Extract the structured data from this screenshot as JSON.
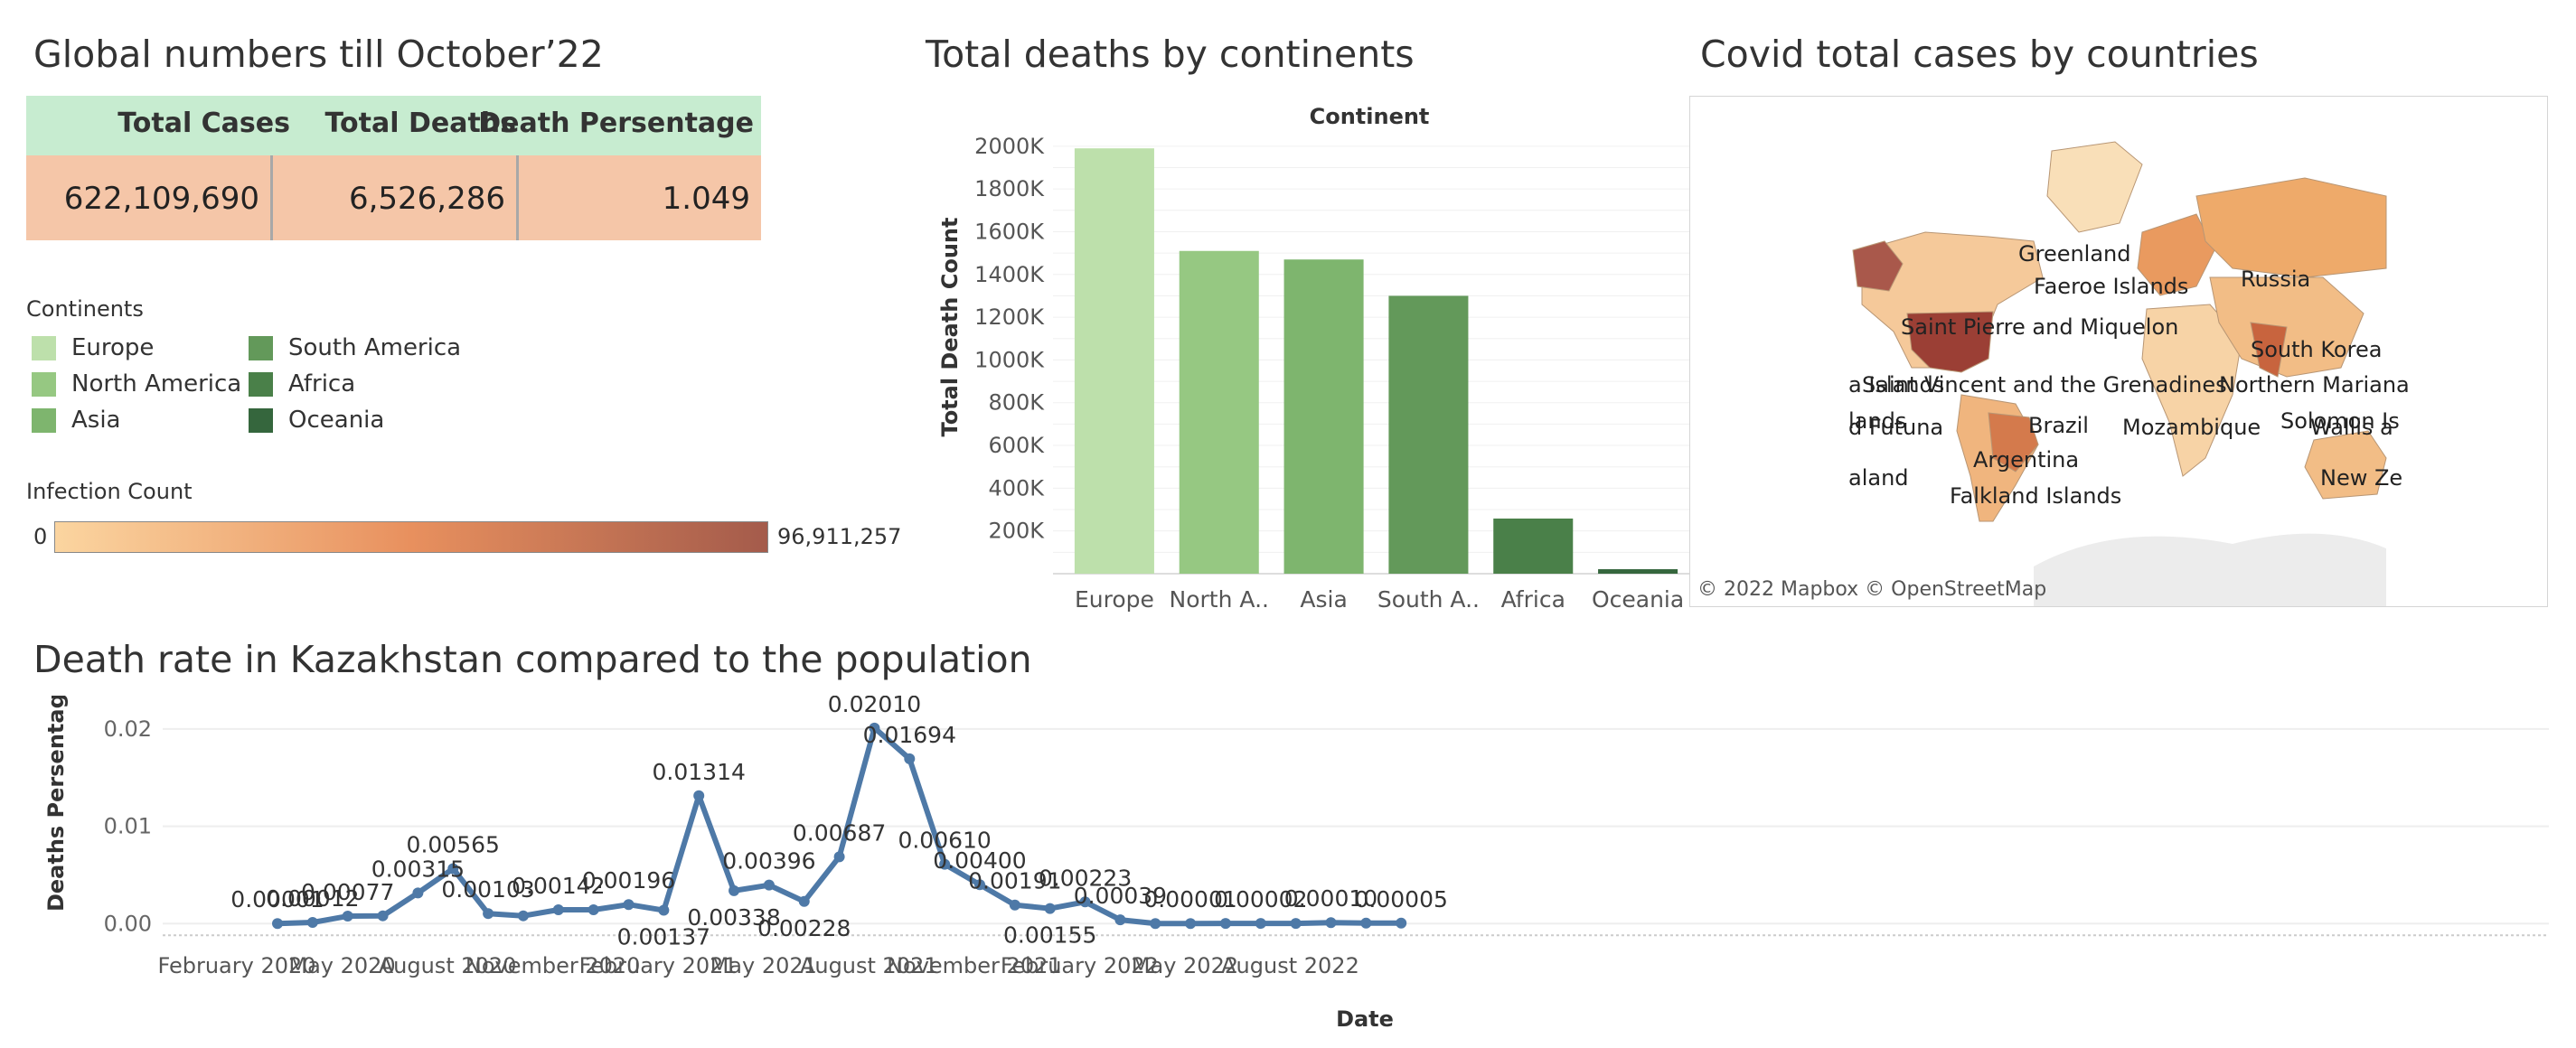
{
  "titles": {
    "global": "Global numbers till October’22",
    "deaths_continent": "Total deaths by continents",
    "cases_countries": "Covid total cases by countries",
    "kazakhstan": "Death rate in Kazakhstan compared to the population"
  },
  "kpi": {
    "headers": [
      "Total Cases",
      "Total Deaths",
      "Death Persentage"
    ],
    "values": [
      "622,109,690",
      "6,526,286",
      "1.049"
    ]
  },
  "legend": {
    "title": "Continents",
    "items": [
      {
        "label": "Europe",
        "color": "#bde0ab"
      },
      {
        "label": "North America",
        "color": "#96c882"
      },
      {
        "label": "Asia",
        "color": "#7eb56e"
      },
      {
        "label": "South America",
        "color": "#63995a"
      },
      {
        "label": "Africa",
        "color": "#4a8049"
      },
      {
        "label": "Oceania",
        "color": "#35663d"
      }
    ]
  },
  "infection": {
    "title": "Infection Count",
    "min": "0",
    "max": "96,911,257",
    "colors": [
      "#fbd5a0",
      "#e8905e",
      "#a45b4b"
    ]
  },
  "map": {
    "attribution": "© 2022 Mapbox  © OpenStreetMap",
    "labels": [
      "Greenland",
      "Faeroe Islands",
      "Russia",
      "Saint Pierre and Miquelon",
      "South Korea",
      "a Islands",
      "Saint Vincent and the Grenadines",
      "Northern Mariana",
      "lands",
      "d Futuna",
      "Brazil",
      "Mozambique",
      "Solomon Is",
      "Wallis a",
      "Argentina",
      "aland",
      "New Ze",
      "Falkland Islands"
    ]
  },
  "chart_data": [
    {
      "type": "bar",
      "header": "Continent",
      "ylabel": "Total Death Count",
      "categories": [
        "Europe",
        "North A..",
        "Asia",
        "South A..",
        "Africa",
        "Oceania"
      ],
      "values": [
        1990000,
        1510000,
        1470000,
        1300000,
        258000,
        21000
      ],
      "colors": [
        "#bde0ab",
        "#96c882",
        "#7eb56e",
        "#63995a",
        "#4a8049",
        "#35663d"
      ],
      "ylim": [
        0,
        2050000
      ],
      "yticks": [
        200000,
        400000,
        600000,
        800000,
        1000000,
        1200000,
        1400000,
        1600000,
        1800000,
        2000000
      ],
      "ytick_labels": [
        "200K",
        "400K",
        "600K",
        "800K",
        "1000K",
        "1200K",
        "1400K",
        "1600K",
        "1800K",
        "2000K"
      ],
      "grid": true
    },
    {
      "type": "line",
      "xlabel": "Date",
      "ylabel": "Deaths Persentage",
      "x": [
        "2020-02",
        "2020-03",
        "2020-04",
        "2020-05",
        "2020-06",
        "2020-07",
        "2020-08",
        "2020-09",
        "2020-10",
        "2020-11",
        "2020-12",
        "2021-01",
        "2021-02",
        "2021-03",
        "2021-04",
        "2021-05",
        "2021-06",
        "2021-07",
        "2021-08",
        "2021-09",
        "2021-10",
        "2021-11",
        "2021-12",
        "2022-01",
        "2022-02",
        "2022-03",
        "2022-04",
        "2022-05",
        "2022-06",
        "2022-07",
        "2022-08",
        "2022-09",
        "2022-10"
      ],
      "values": [
        1e-05,
        0.00012,
        0.00077,
        0.0008,
        0.00315,
        0.00565,
        0.00103,
        0.0008,
        0.00142,
        0.00142,
        0.00196,
        0.00137,
        0.01314,
        0.00338,
        0.00396,
        0.00228,
        0.00687,
        0.0201,
        0.01694,
        0.0061,
        0.004,
        0.00191,
        0.00155,
        0.00223,
        0.00039,
        1e-05,
        1e-05,
        2e-05,
        2e-05,
        2e-05,
        0.0001,
        5e-05,
        5e-05
      ],
      "labels": [
        "0.00001",
        "0.00012",
        "0.00077",
        "",
        "0.00315",
        "0.00565",
        "0.00103",
        "",
        "0.00142",
        "",
        "0.00196",
        "0.00137",
        "0.01314",
        "0.00338",
        "0.00396",
        "0.00228",
        "0.00687",
        "0.02010",
        "0.01694",
        "0.00610",
        "0.00400",
        "0.00191",
        "0.00155",
        "0.00223",
        "0.00039",
        "",
        "0.00001",
        "",
        "0.00002",
        "",
        "0.00010",
        "",
        "0.00005"
      ],
      "ylim": [
        -0.0009,
        0.0212
      ],
      "yticks": [
        0,
        0.01,
        0.02
      ],
      "ytick_labels": [
        "0.00",
        "0.01",
        "0.02"
      ],
      "xticks": [
        "February 2020",
        "May 2020",
        "August 2020",
        "November 2020",
        "February 2021",
        "May 2021",
        "August 2021",
        "November 2021",
        "February 2022",
        "May 2022",
        "August 2022"
      ],
      "color": "#4e79a7",
      "grid": true
    }
  ]
}
